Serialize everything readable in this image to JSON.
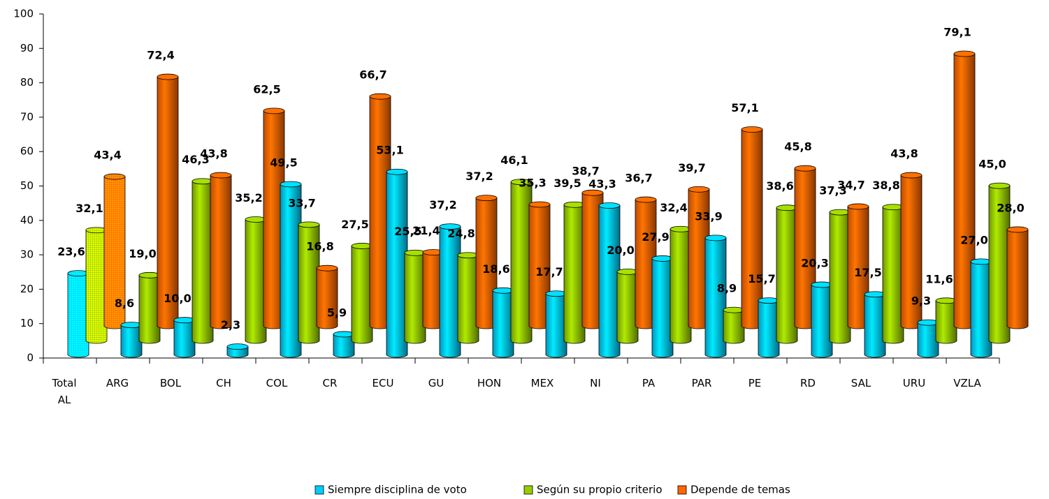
{
  "chart_data": {
    "type": "bar3d",
    "categories": [
      "Total AL",
      "ARG",
      "BOL",
      "CH",
      "COL",
      "CR",
      "ECU",
      "GU",
      "HON",
      "MEX",
      "NI",
      "PA",
      "PAR",
      "PE",
      "RD",
      "SAL",
      "URU",
      "VZLA"
    ],
    "series": [
      {
        "name": "Siempre disciplina de voto",
        "color": "#00ccff",
        "values": [
          23.6,
          8.6,
          10.0,
          2.3,
          49.5,
          5.9,
          53.1,
          37.2,
          18.6,
          17.7,
          43.3,
          27.9,
          33.9,
          15.7,
          20.3,
          17.5,
          9.3,
          27.0
        ],
        "value_labels": [
          "23,6",
          "8,6",
          "10,0",
          "2,3",
          "49,5",
          "5,9",
          "53,1",
          "37,2",
          "18,6",
          "17,7",
          "43,3",
          "27,9",
          "33,9",
          "15,7",
          "20,3",
          "17,5",
          "9,3",
          "27,0"
        ]
      },
      {
        "name": "Según su propio criterio",
        "color": "#99cc00",
        "values": [
          32.1,
          19.0,
          46.3,
          35.2,
          33.7,
          27.5,
          25.5,
          24.8,
          46.1,
          39.5,
          20.0,
          32.4,
          8.9,
          38.6,
          37.3,
          38.8,
          11.6,
          45.0
        ],
        "value_labels": [
          "32,1",
          "19,0",
          "46,3",
          "35,2",
          "33,7",
          "27,5",
          "25,5",
          "24,8",
          "46,1",
          "39,5",
          "20,0",
          "32,4",
          "8,9",
          "38,6",
          "37,3",
          "38,8",
          "11,6",
          "45,0"
        ]
      },
      {
        "name": "Depende de temas",
        "color": "#ff6600",
        "values": [
          43.4,
          72.4,
          43.8,
          62.5,
          16.8,
          66.7,
          21.4,
          37.2,
          35.3,
          38.7,
          36.7,
          39.7,
          57.1,
          45.8,
          34.7,
          43.8,
          79.1,
          28.0
        ],
        "value_labels": [
          "43,4",
          "72,4",
          "43,8",
          "62,5",
          "16,8",
          "66,7",
          "21,4",
          "37,2",
          "35,3",
          "38,7",
          "36,7",
          "39,7",
          "57,1",
          "45,8",
          "34,7",
          "43,8",
          "79,1",
          "28,0"
        ]
      }
    ],
    "ylim": [
      0,
      100
    ],
    "yticks": [
      0,
      10,
      20,
      30,
      40,
      50,
      60,
      70,
      80,
      90,
      100
    ],
    "legend": "bottom"
  }
}
